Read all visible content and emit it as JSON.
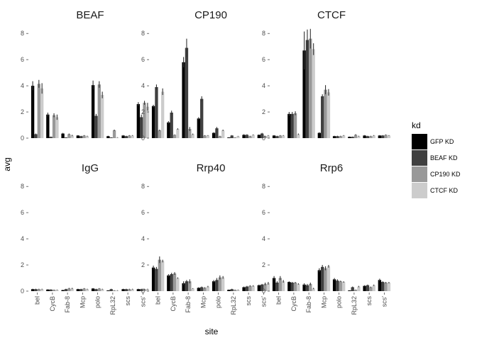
{
  "chart_data": {
    "type": "bar",
    "xlabel": "site",
    "ylabel": "avg",
    "ylim": [
      0,
      8.5
    ],
    "yticks": [
      0,
      2,
      4,
      6,
      8
    ],
    "grid": false,
    "legend_position": "right",
    "legend_title": "kd",
    "categories": [
      "bel",
      "CycB",
      "Fab-8",
      "Mcp",
      "polo",
      "RpL32",
      "scs",
      "scs'"
    ],
    "series_names": [
      "GFP KD",
      "BEAF KD",
      "CP190 KD",
      "CTCF KD"
    ],
    "colors": [
      "#000000",
      "#404040",
      "#999999",
      "#cccccc"
    ],
    "facets": [
      {
        "title": "BEAF",
        "values": [
          [
            4.0,
            0.3,
            4.15,
            3.8
          ],
          [
            1.8,
            0.1,
            1.75,
            1.6
          ],
          [
            0.35,
            0.05,
            0.3,
            0.2
          ],
          [
            0.2,
            0.15,
            0.2,
            0.15
          ],
          [
            4.05,
            1.7,
            4.1,
            3.3
          ],
          [
            0.15,
            0.05,
            0.6,
            0.05
          ],
          [
            0.2,
            0.15,
            0.2,
            0.2
          ],
          [
            2.6,
            1.6,
            2.7,
            2.4
          ]
        ],
        "errors": [
          [
            0.35,
            0.05,
            0.3,
            0.4
          ],
          [
            0.15,
            0.02,
            0.15,
            0.2
          ],
          [
            0.05,
            0.02,
            0.05,
            0.05
          ],
          [
            0.03,
            0.03,
            0.03,
            0.03
          ],
          [
            0.35,
            0.15,
            0.25,
            0.25
          ],
          [
            0.03,
            0.02,
            0.05,
            0.02
          ],
          [
            0.03,
            0.03,
            0.03,
            0.03
          ],
          [
            0.15,
            0.2,
            0.15,
            0.3
          ]
        ]
      },
      {
        "title": "CP190",
        "values": [
          [
            2.45,
            3.9,
            0.6,
            3.55
          ],
          [
            1.2,
            1.95,
            0.25,
            0.7
          ],
          [
            5.8,
            6.9,
            0.7,
            0.3
          ],
          [
            1.5,
            3.0,
            0.2,
            0.2
          ],
          [
            0.4,
            0.75,
            0.15,
            0.6
          ],
          [
            0.05,
            0.2,
            0.05,
            0.15
          ],
          [
            0.25,
            0.25,
            0.15,
            0.25
          ],
          [
            0.25,
            0.35,
            0.15,
            0.2
          ]
        ],
        "errors": [
          [
            0.1,
            0.2,
            0.05,
            0.25
          ],
          [
            0.1,
            0.15,
            0.03,
            0.05
          ],
          [
            0.4,
            0.7,
            0.15,
            0.05
          ],
          [
            0.1,
            0.2,
            0.03,
            0.03
          ],
          [
            0.05,
            0.1,
            0.03,
            0.05
          ],
          [
            0.02,
            0.03,
            0.02,
            0.02
          ],
          [
            0.05,
            0.05,
            0.03,
            0.03
          ],
          [
            0.03,
            0.05,
            0.03,
            0.03
          ]
        ]
      },
      {
        "title": "CTCF",
        "values": [
          [
            0.2,
            0.15,
            0.2,
            0.2
          ],
          [
            1.85,
            1.85,
            1.9,
            0.3
          ],
          [
            6.7,
            7.5,
            7.6,
            6.8
          ],
          [
            0.4,
            3.2,
            3.7,
            3.5
          ],
          [
            0.15,
            0.15,
            0.15,
            0.2
          ],
          [
            0.1,
            0.1,
            0.25,
            0.15
          ],
          [
            0.2,
            0.15,
            0.15,
            0.2
          ],
          [
            0.2,
            0.2,
            0.25,
            0.2
          ]
        ],
        "errors": [
          [
            0.03,
            0.03,
            0.03,
            0.03
          ],
          [
            0.15,
            0.15,
            0.15,
            0.05
          ],
          [
            1.45,
            0.8,
            0.75,
            0.45
          ],
          [
            0.05,
            0.15,
            0.35,
            0.25
          ],
          [
            0.03,
            0.03,
            0.03,
            0.03
          ],
          [
            0.02,
            0.02,
            0.05,
            0.03
          ],
          [
            0.03,
            0.03,
            0.03,
            0.03
          ],
          [
            0.03,
            0.03,
            0.03,
            0.03
          ]
        ]
      },
      {
        "title": "IgG",
        "values": [
          [
            0.15,
            0.15,
            0.15,
            0.15
          ],
          [
            0.12,
            0.12,
            0.1,
            0.1
          ],
          [
            0.08,
            0.15,
            0.2,
            0.2
          ],
          [
            0.15,
            0.15,
            0.2,
            0.15
          ],
          [
            0.2,
            0.15,
            0.2,
            0.15
          ],
          [
            0.05,
            0.15,
            0.05,
            0.05
          ],
          [
            0.15,
            0.15,
            0.15,
            0.15
          ],
          [
            0.15,
            0.15,
            0.15,
            0.15
          ]
        ],
        "errors": [
          [
            0.03,
            0.03,
            0.03,
            0.03
          ],
          [
            0.02,
            0.02,
            0.02,
            0.02
          ],
          [
            0.02,
            0.03,
            0.05,
            0.05
          ],
          [
            0.03,
            0.03,
            0.03,
            0.03
          ],
          [
            0.03,
            0.03,
            0.03,
            0.03
          ],
          [
            0.02,
            0.03,
            0.02,
            0.02
          ],
          [
            0.03,
            0.03,
            0.03,
            0.03
          ],
          [
            0.03,
            0.03,
            0.03,
            0.03
          ]
        ]
      },
      {
        "title": "Rrp40",
        "values": [
          [
            1.8,
            1.7,
            2.4,
            2.3
          ],
          [
            1.2,
            1.3,
            1.35,
            1.0
          ],
          [
            0.6,
            0.75,
            0.75,
            0.2
          ],
          [
            0.25,
            0.3,
            0.25,
            0.35
          ],
          [
            0.75,
            0.85,
            1.05,
            1.05
          ],
          [
            0.1,
            0.15,
            0.1,
            0.1
          ],
          [
            0.3,
            0.35,
            0.4,
            0.4
          ],
          [
            0.45,
            0.5,
            0.55,
            0.6
          ]
        ],
        "errors": [
          [
            0.15,
            0.15,
            0.25,
            0.1
          ],
          [
            0.1,
            0.1,
            0.1,
            0.05
          ],
          [
            0.15,
            0.1,
            0.15,
            0.03
          ],
          [
            0.05,
            0.05,
            0.05,
            0.05
          ],
          [
            0.1,
            0.15,
            0.15,
            0.1
          ],
          [
            0.02,
            0.03,
            0.02,
            0.02
          ],
          [
            0.05,
            0.05,
            0.05,
            0.05
          ],
          [
            0.05,
            0.05,
            0.1,
            0.1
          ]
        ]
      },
      {
        "title": "Rrp6",
        "values": [
          [
            1.0,
            0.65,
            1.0,
            0.75
          ],
          [
            0.7,
            0.65,
            0.65,
            0.55
          ],
          [
            0.5,
            0.45,
            0.55,
            0.2
          ],
          [
            1.6,
            1.85,
            1.75,
            1.9
          ],
          [
            0.9,
            0.8,
            0.75,
            0.7
          ],
          [
            0.05,
            0.3,
            0.1,
            0.35
          ],
          [
            0.4,
            0.45,
            0.3,
            0.45
          ],
          [
            0.85,
            0.7,
            0.65,
            0.65
          ]
        ],
        "errors": [
          [
            0.15,
            0.1,
            0.15,
            0.1
          ],
          [
            0.05,
            0.05,
            0.05,
            0.05
          ],
          [
            0.1,
            0.1,
            0.1,
            0.05
          ],
          [
            0.15,
            0.15,
            0.15,
            0.1
          ],
          [
            0.1,
            0.1,
            0.05,
            0.05
          ],
          [
            0.02,
            0.05,
            0.02,
            0.05
          ],
          [
            0.05,
            0.05,
            0.05,
            0.05
          ],
          [
            0.1,
            0.05,
            0.05,
            0.05
          ]
        ]
      }
    ]
  }
}
